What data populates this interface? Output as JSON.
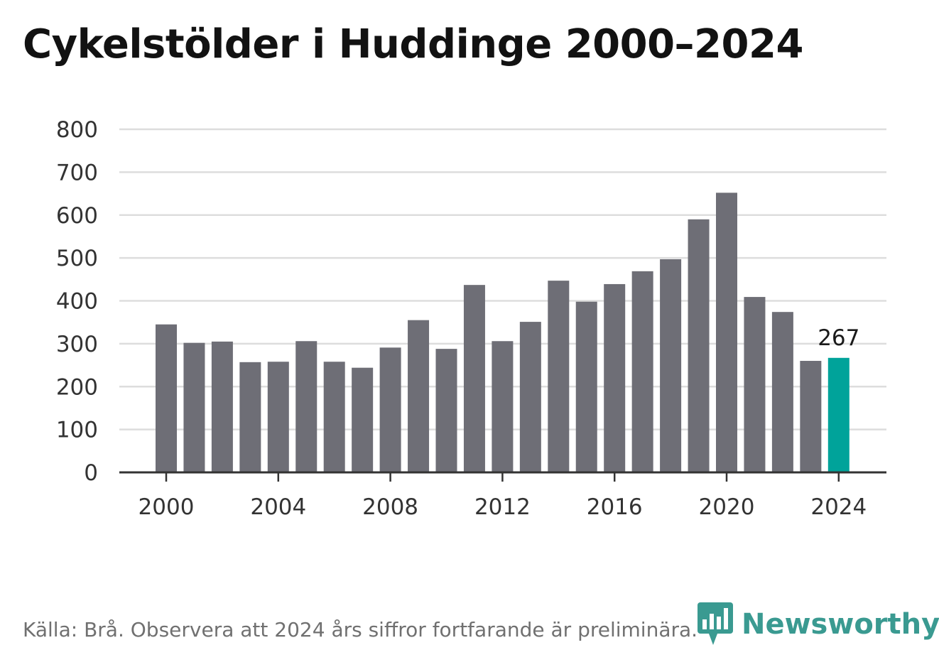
{
  "title": "Cykelstölder i Huddinge 2000–2024",
  "source": "Källa: Brå. Observera att 2024 års siffror fortfarande är preliminära.",
  "brand": {
    "name": "Newsworthy",
    "icon": "newsworthy-logo-icon",
    "color": "#3a9a91"
  },
  "chart_data": {
    "type": "bar",
    "x": [
      2000,
      2001,
      2002,
      2003,
      2004,
      2005,
      2006,
      2007,
      2008,
      2009,
      2010,
      2011,
      2012,
      2013,
      2014,
      2015,
      2016,
      2017,
      2018,
      2019,
      2020,
      2021,
      2022,
      2023,
      2024
    ],
    "values": [
      345,
      302,
      305,
      257,
      258,
      306,
      258,
      244,
      291,
      355,
      288,
      437,
      306,
      351,
      447,
      398,
      439,
      469,
      497,
      590,
      652,
      409,
      374,
      260,
      267
    ],
    "xticks": [
      2000,
      2004,
      2008,
      2012,
      2016,
      2020,
      2024
    ],
    "yticks": [
      0,
      100,
      200,
      300,
      400,
      500,
      600,
      700,
      800
    ],
    "ylim": [
      0,
      800
    ],
    "grid": true,
    "colors": {
      "bar": "#6e6e76",
      "highlight": "#00a39a",
      "grid": "#dddddd",
      "axis": "#333333"
    },
    "highlight_index": 24,
    "annotations": [
      {
        "x": 2024,
        "text": "267"
      }
    ]
  }
}
